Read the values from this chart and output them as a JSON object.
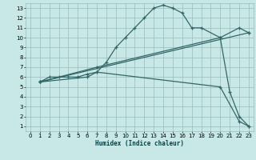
{
  "title": "",
  "xlabel": "Humidex (Indice chaleur)",
  "bg_color": "#c8e8e8",
  "grid_color": "#99bbbb",
  "line_color": "#336666",
  "xlim": [
    -0.5,
    23.5
  ],
  "ylim": [
    0.5,
    13.5
  ],
  "xticks": [
    0,
    1,
    2,
    3,
    4,
    5,
    6,
    7,
    8,
    9,
    10,
    11,
    12,
    13,
    14,
    15,
    16,
    17,
    18,
    19,
    20,
    21,
    22,
    23
  ],
  "yticks": [
    1,
    2,
    3,
    4,
    5,
    6,
    7,
    8,
    9,
    10,
    11,
    12,
    13
  ],
  "line1": {
    "x": [
      1,
      2,
      3,
      4,
      5,
      6,
      7,
      8,
      9,
      10,
      11,
      12,
      13,
      14,
      15,
      16,
      17,
      18,
      20,
      21,
      22,
      23
    ],
    "y": [
      5.5,
      6.0,
      6.0,
      6.0,
      6.0,
      6.3,
      6.5,
      7.5,
      9.0,
      10.0,
      11.0,
      12.0,
      13.0,
      13.3,
      13.0,
      12.5,
      11.0,
      11.0,
      10.0,
      4.5,
      2.0,
      1.0
    ]
  },
  "line2": {
    "x": [
      1,
      23
    ],
    "y": [
      5.5,
      10.5
    ]
  },
  "line3": {
    "x": [
      1,
      7,
      20,
      22,
      23
    ],
    "y": [
      5.5,
      7.0,
      10.0,
      11.0,
      10.5
    ]
  },
  "line4": {
    "x": [
      1,
      6,
      7,
      20,
      22,
      23
    ],
    "y": [
      5.5,
      6.0,
      6.5,
      5.0,
      1.5,
      1.0
    ]
  }
}
